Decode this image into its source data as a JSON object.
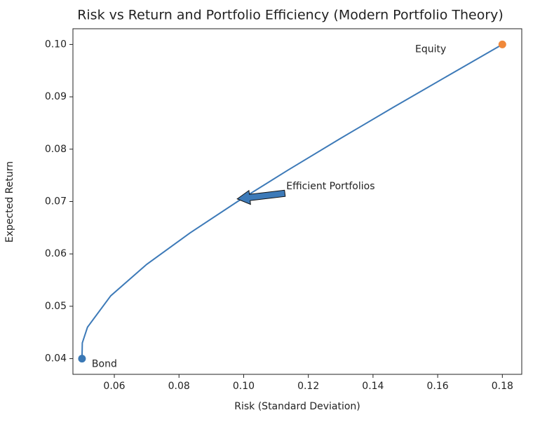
{
  "chart_data": {
    "type": "line",
    "title": "Risk vs Return and Portfolio Efficiency (Modern Portfolio Theory)",
    "x_label": "Risk (Standard Deviation)",
    "y_label": "Expected Return",
    "x": [
      0.05,
      0.0501,
      0.0517,
      0.0589,
      0.07,
      0.0834,
      0.0981,
      0.1137,
      0.1298,
      0.1463,
      0.1631,
      0.18
    ],
    "series": [
      {
        "color": "#3d7ab8",
        "values": [
          0.04,
          0.043,
          0.046,
          0.052,
          0.058,
          0.064,
          0.07,
          0.076,
          0.082,
          0.088,
          0.094,
          0.1
        ]
      }
    ],
    "points": [
      {
        "label": "Bond",
        "x": 0.05,
        "y": 0.04,
        "color": "#3a78b5"
      },
      {
        "label": "Equity",
        "x": 0.18,
        "y": 0.1,
        "color": "#f0883a"
      }
    ],
    "annotation": {
      "text": "Efficient Portfolios",
      "x": 0.098,
      "y": 0.0705
    },
    "xlim": [
      0.0472,
      0.186
    ],
    "ylim": [
      0.037,
      0.103
    ],
    "xticks": [
      0.06,
      0.08,
      {
        "value": 0.1,
        "label": "0.10"
      },
      0.12,
      0.14,
      0.16,
      0.18
    ],
    "yticks": [
      0.04,
      0.05,
      0.06,
      0.07,
      0.08,
      0.09,
      {
        "value": 0.1,
        "label": "0.10"
      }
    ]
  }
}
